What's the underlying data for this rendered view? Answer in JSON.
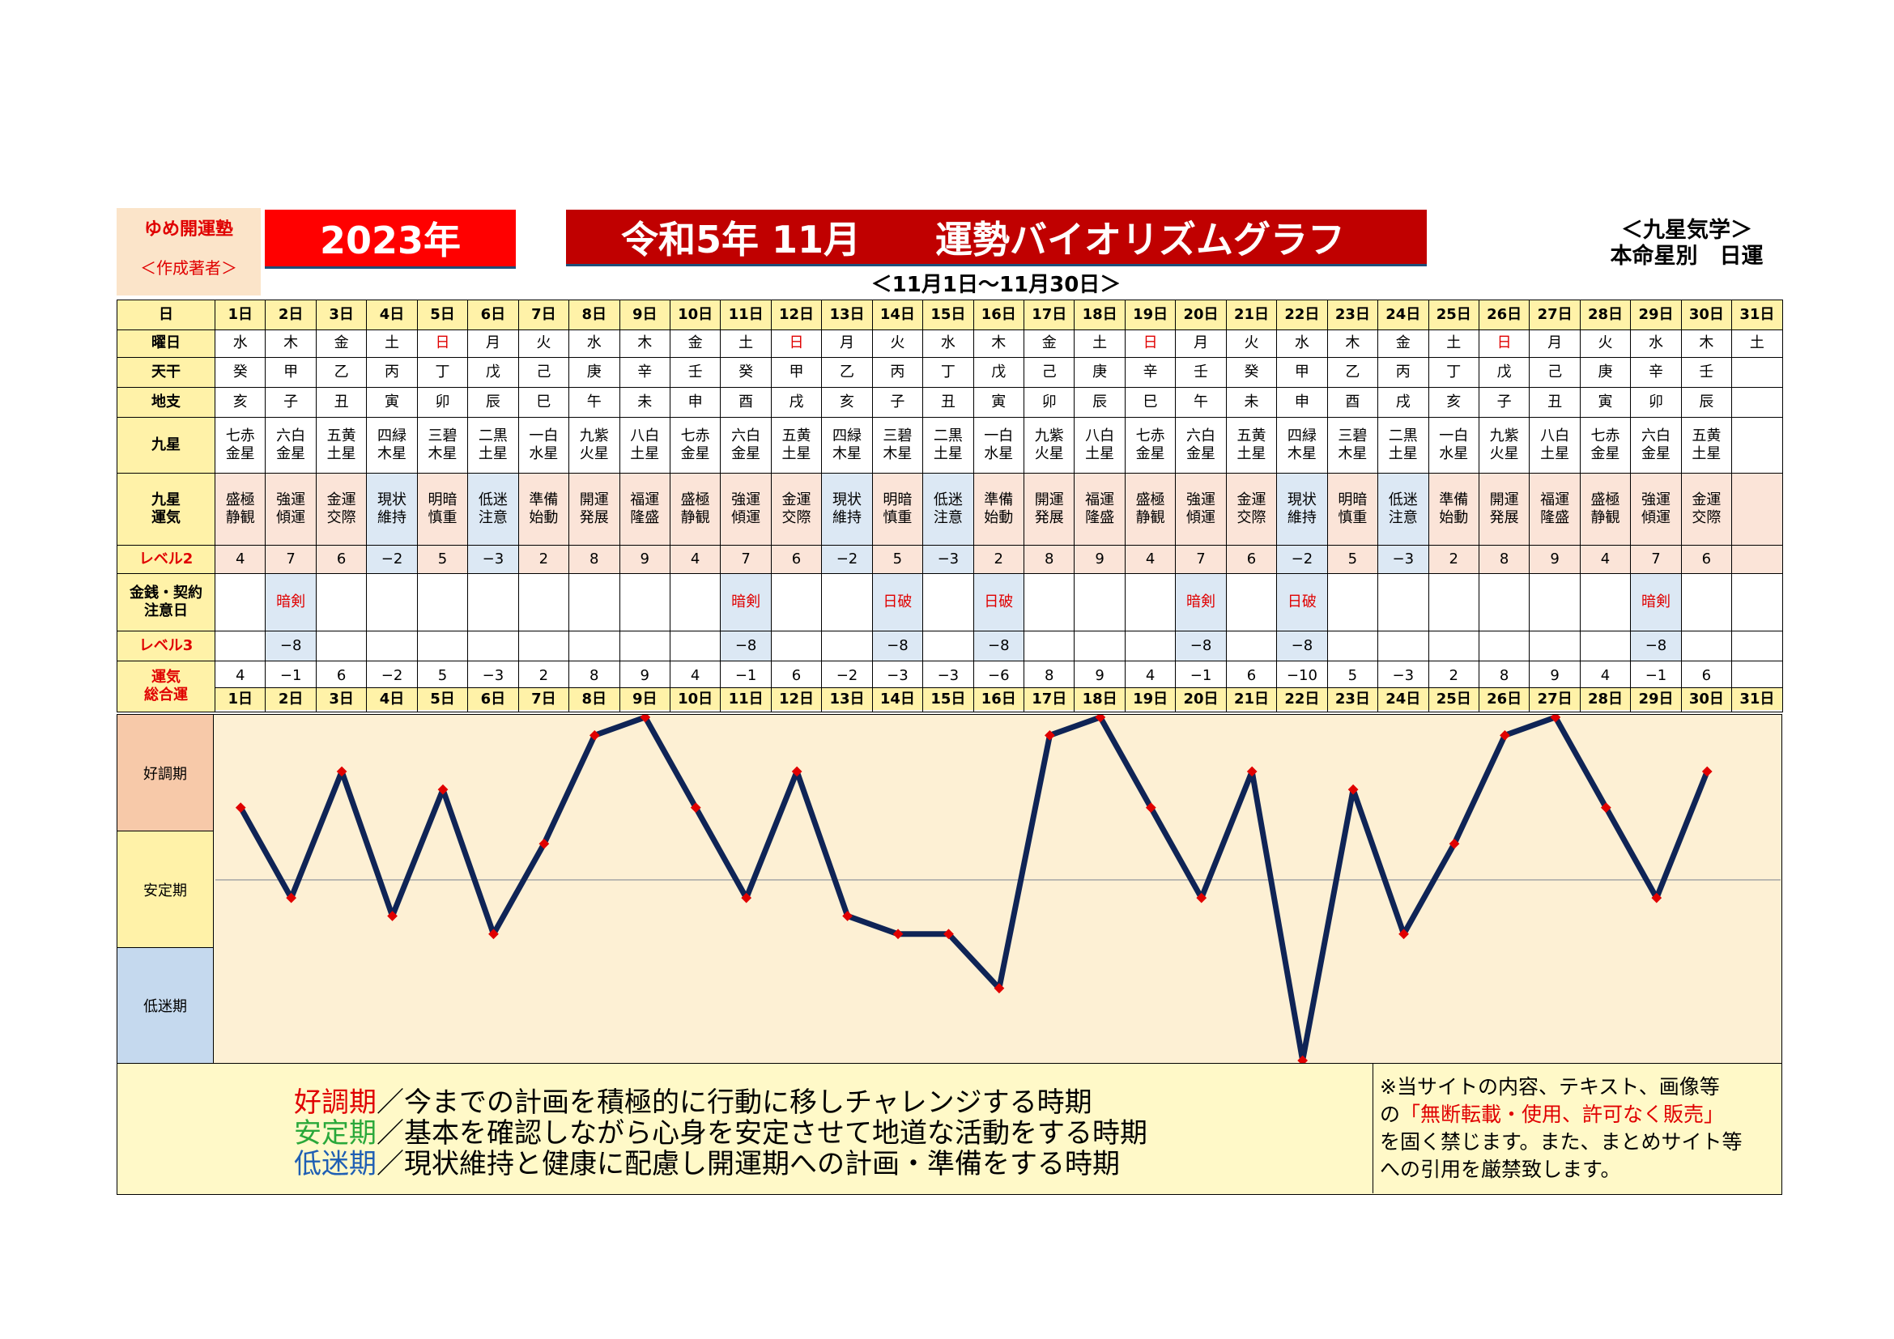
{
  "author": {
    "name": "ゆめ開運塾",
    "sub": "＜作成著者＞"
  },
  "year_label": "2023年",
  "title": "令和5年 11月　　運勢バイオリズムグラフ",
  "corner": {
    "line1": "＜九星気学＞",
    "line2": "本命星別　日運"
  },
  "range_label": "＜11月1日～11月30日＞",
  "row_labels": {
    "day": "日",
    "weekday": "曜日",
    "tenkan": "天干",
    "chishi": "地支",
    "kyusei": "九星",
    "kyusei_unki": "九星\n運気",
    "level2": "レベル2",
    "caution": "金銭・契約\n注意日",
    "level3": "レベル3",
    "total": "運気\n総合運"
  },
  "days": [
    "1日",
    "2日",
    "3日",
    "4日",
    "5日",
    "6日",
    "7日",
    "8日",
    "9日",
    "10日",
    "11日",
    "12日",
    "13日",
    "14日",
    "15日",
    "16日",
    "17日",
    "18日",
    "19日",
    "20日",
    "21日",
    "22日",
    "23日",
    "24日",
    "25日",
    "26日",
    "27日",
    "28日",
    "29日",
    "30日",
    "31日"
  ],
  "weekdays": [
    "水",
    "木",
    "金",
    "土",
    "日",
    "月",
    "火",
    "水",
    "木",
    "金",
    "土",
    "日",
    "月",
    "火",
    "水",
    "木",
    "金",
    "土",
    "日",
    "月",
    "火",
    "水",
    "木",
    "金",
    "土",
    "日",
    "月",
    "火",
    "水",
    "木",
    "土"
  ],
  "tenkan": [
    "癸",
    "甲",
    "乙",
    "丙",
    "丁",
    "戊",
    "己",
    "庚",
    "辛",
    "壬",
    "癸",
    "甲",
    "乙",
    "丙",
    "丁",
    "戊",
    "己",
    "庚",
    "辛",
    "壬",
    "癸",
    "甲",
    "乙",
    "丙",
    "丁",
    "戊",
    "己",
    "庚",
    "辛",
    "壬",
    ""
  ],
  "chishi": [
    "亥",
    "子",
    "丑",
    "寅",
    "卯",
    "辰",
    "巳",
    "午",
    "未",
    "申",
    "酉",
    "戌",
    "亥",
    "子",
    "丑",
    "寅",
    "卯",
    "辰",
    "巳",
    "午",
    "未",
    "申",
    "酉",
    "戌",
    "亥",
    "子",
    "丑",
    "寅",
    "卯",
    "辰",
    ""
  ],
  "kyusei": [
    "七赤\n金星",
    "六白\n金星",
    "五黄\n土星",
    "四緑\n木星",
    "三碧\n木星",
    "二黒\n土星",
    "一白\n水星",
    "九紫\n火星",
    "八白\n土星",
    "七赤\n金星",
    "六白\n金星",
    "五黄\n土星",
    "四緑\n木星",
    "三碧\n木星",
    "二黒\n土星",
    "一白\n水星",
    "九紫\n火星",
    "八白\n土星",
    "七赤\n金星",
    "六白\n金星",
    "五黄\n土星",
    "四緑\n木星",
    "三碧\n木星",
    "二黒\n土星",
    "一白\n水星",
    "九紫\n火星",
    "八白\n土星",
    "七赤\n金星",
    "六白\n金星",
    "五黄\n土星",
    ""
  ],
  "kyusei_unki": [
    "盛極\n静観",
    "強運\n傾運",
    "金運\n交際",
    "現状\n維持",
    "明暗\n慎重",
    "低迷\n注意",
    "準備\n始動",
    "開運\n発展",
    "福運\n隆盛",
    "盛極\n静観",
    "強運\n傾運",
    "金運\n交際",
    "現状\n維持",
    "明暗\n慎重",
    "低迷\n注意",
    "準備\n始動",
    "開運\n発展",
    "福運\n隆盛",
    "盛極\n静観",
    "強運\n傾運",
    "金運\n交際",
    "現状\n維持",
    "明暗\n慎重",
    "低迷\n注意",
    "準備\n始動",
    "開運\n発展",
    "福運\n隆盛",
    "盛極\n静観",
    "強運\n傾運",
    "金運\n交際",
    ""
  ],
  "level2": [
    "4",
    "7",
    "6",
    "−2",
    "5",
    "−3",
    "2",
    "8",
    "9",
    "4",
    "7",
    "6",
    "−2",
    "5",
    "−3",
    "2",
    "8",
    "9",
    "4",
    "7",
    "6",
    "−2",
    "5",
    "−3",
    "2",
    "8",
    "9",
    "4",
    "7",
    "6",
    ""
  ],
  "caution": [
    "",
    "暗剣",
    "",
    "",
    "",
    "",
    "",
    "",
    "",
    "",
    "暗剣",
    "",
    "",
    "日破",
    "",
    "日破",
    "",
    "",
    "",
    "暗剣",
    "",
    "日破",
    "",
    "",
    "",
    "",
    "",
    "",
    "暗剣",
    "",
    ""
  ],
  "level3": [
    "",
    "−8",
    "",
    "",
    "",
    "",
    "",
    "",
    "",
    "",
    "−8",
    "",
    "",
    "−8",
    "",
    "−8",
    "",
    "",
    "",
    "−8",
    "",
    "−8",
    "",
    "",
    "",
    "",
    "",
    "",
    "−8",
    "",
    ""
  ],
  "total": [
    "4",
    "−1",
    "6",
    "−2",
    "5",
    "−3",
    "2",
    "8",
    "9",
    "4",
    "−1",
    "6",
    "−2",
    "−3",
    "−3",
    "−6",
    "8",
    "9",
    "4",
    "−1",
    "6",
    "−10",
    "5",
    "−3",
    "2",
    "8",
    "9",
    "4",
    "−1",
    "6",
    ""
  ],
  "colors": {
    "line": "#0f2456",
    "marker": "#e00000",
    "good": "#f7c9a9",
    "stable": "#fff2a8",
    "low": "#c5d9ee",
    "plot_bg": "#fdf0d4",
    "title_red": "#c00000",
    "year_red": "#ff0000"
  },
  "bands": {
    "good": "好調期",
    "stable": "安定期",
    "low": "低迷期"
  },
  "legend": {
    "good_term": "好調期",
    "good_text": "／今までの計画を積極的に行動に移しチャレンジする時期",
    "stable_term": "安定期",
    "stable_text": "／基本を確認しながら心身を安定させて地道な活動をする時期",
    "low_term": "低迷期",
    "low_text": "／現状維持と健康に配慮し開運期への計画・準備をする時期"
  },
  "notice": {
    "line1": "※当サイトの内容、テキスト、画像等",
    "line2_pre": "の",
    "line2_red": "「無断転載・使用、許可なく販売」",
    "line3": "を固く禁じます。また、まとめサイト等",
    "line4": "への引用を厳禁致します。"
  },
  "chart_data": {
    "type": "line",
    "title": "運勢バイオリズムグラフ",
    "categories": [
      "1日",
      "2日",
      "3日",
      "4日",
      "5日",
      "6日",
      "7日",
      "8日",
      "9日",
      "10日",
      "11日",
      "12日",
      "13日",
      "14日",
      "15日",
      "16日",
      "17日",
      "18日",
      "19日",
      "20日",
      "21日",
      "22日",
      "23日",
      "24日",
      "25日",
      "26日",
      "27日",
      "28日",
      "29日",
      "30日"
    ],
    "series": [
      {
        "name": "運気総合運",
        "values": [
          4,
          -1,
          6,
          -2,
          5,
          -3,
          2,
          8,
          9,
          4,
          -1,
          6,
          -2,
          -3,
          -3,
          -6,
          8,
          9,
          4,
          -1,
          6,
          -10,
          5,
          -3,
          2,
          8,
          9,
          4,
          -1,
          6
        ]
      }
    ],
    "ylim": [
      -10,
      9
    ],
    "grid": false
  }
}
